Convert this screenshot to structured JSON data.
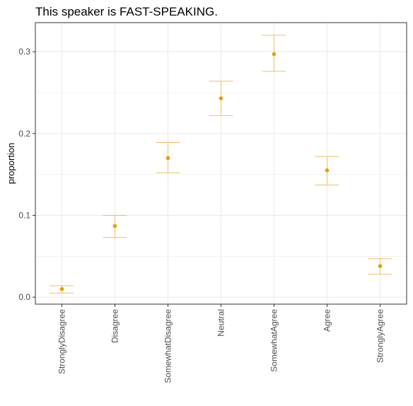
{
  "chart_data": {
    "type": "scatter",
    "title": "This speaker is FAST-SPEAKING.",
    "xlabel": "",
    "ylabel": "proportion",
    "categories": [
      "StronglyDisagree",
      "Disagree",
      "SomewhatDisagree",
      "Neutral",
      "SomewhatAgree",
      "Agree",
      "StronglyAgree"
    ],
    "values": [
      0.01,
      0.087,
      0.17,
      0.243,
      0.297,
      0.155,
      0.038
    ],
    "error_low": [
      0.005,
      0.073,
      0.152,
      0.222,
      0.276,
      0.137,
      0.028
    ],
    "error_high": [
      0.014,
      0.1,
      0.189,
      0.264,
      0.32,
      0.172,
      0.047
    ],
    "ylim": [
      -0.0085,
      0.3355
    ],
    "yticks": [
      0.0,
      0.1,
      0.2,
      0.3
    ],
    "ytick_labels": [
      "0.0",
      "0.1",
      "0.2",
      "0.3"
    ],
    "grid": true,
    "colors": {
      "point": "#e69f00",
      "error_bar": "#f0c060",
      "grid": "#ebebeb",
      "panel_border": "#333333",
      "tick_text": "#4d4d4d"
    }
  }
}
